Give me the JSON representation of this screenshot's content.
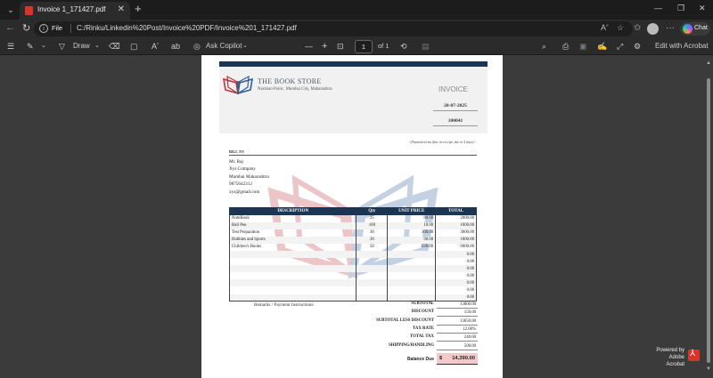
{
  "browser": {
    "tab_title": "Invoice 1_171427.pdf",
    "url_scheme": "File",
    "url": "C:/Rinku/Linkedin%20Post/Invoice%20PDF/Invoice%201_171427.pdf",
    "chat_label": "Chat"
  },
  "pdf_toolbar": {
    "draw_label": "Draw",
    "ask_copilot_label": "Ask Copilot",
    "page_current": "1",
    "page_total": "of 1",
    "edit_acrobat_label": "Edit with Acrobat"
  },
  "footer": {
    "powered_line1": "Powered by",
    "powered_line2": "Adobe Acrobat"
  },
  "invoice": {
    "store_name": "THE BOOK STORE",
    "store_address": "Nariman Point , Mumbai City, Maharashtra",
    "label": "INVOICE",
    "date": "28-07-2025",
    "number": "100041",
    "terms": "<Payment terms (due on receipt, due in X days)>",
    "bill_to_label": "BILL TO",
    "bill_to": {
      "name": "Mr. Raj",
      "company": "Xys Company",
      "city": "Mumbai Maharashtra",
      "phone": "9875642312",
      "email": "xyz@gmail.com"
    },
    "columns": [
      "DESCRIPTION",
      "Qty",
      "UNIT PRICE",
      "TOTAL"
    ],
    "items": [
      {
        "desc": "NoteBook",
        "qty": "25",
        "price": "80.00",
        "total": "2000.00"
      },
      {
        "desc": "Ball Pen",
        "qty": "100",
        "price": "10.00",
        "total": "1000.00"
      },
      {
        "desc": "Test Preparation",
        "qty": "30",
        "price": "100.00",
        "total": "3000.00"
      },
      {
        "desc": "Hobbies and Sports",
        "qty": "20",
        "price": "90.00",
        "total": "1800.00"
      },
      {
        "desc": "Children's Books",
        "qty": "50",
        "price": "120.00",
        "total": "6000.00"
      },
      {
        "desc": "",
        "qty": "",
        "price": "",
        "total": "0.00"
      },
      {
        "desc": "",
        "qty": "",
        "price": "",
        "total": "0.00"
      },
      {
        "desc": "",
        "qty": "",
        "price": "",
        "total": "0.00"
      },
      {
        "desc": "",
        "qty": "",
        "price": "",
        "total": "0.00"
      },
      {
        "desc": "",
        "qty": "",
        "price": "",
        "total": "0.00"
      },
      {
        "desc": "",
        "qty": "",
        "price": "",
        "total": "0.00"
      },
      {
        "desc": "",
        "qty": "",
        "price": "",
        "total": "0.00"
      }
    ],
    "remarks_label": "Remarks / Payment Instructions:",
    "summary": [
      {
        "label": "SUBTOTAL",
        "value": "13800.00"
      },
      {
        "label": "DISCOUNT",
        "value": "150.00"
      },
      {
        "label": "SUBTOTAL LESS DISCOUNT",
        "value": "13650.00"
      },
      {
        "label": "TAX RATE",
        "value": "12.00%"
      },
      {
        "label": "TOTAL TAX",
        "value": "240.00"
      },
      {
        "label": "SHIPPING/HANDLING",
        "value": "500.00"
      }
    ],
    "balance_label": "Balance Due",
    "balance_currency": "$",
    "balance_amount": "14,390.00"
  },
  "colors": {
    "header_navy": "#1b3553",
    "balance_fill": "#f5c9c9",
    "logo_red": "#b8343a",
    "logo_blue": "#2e5d9a"
  }
}
